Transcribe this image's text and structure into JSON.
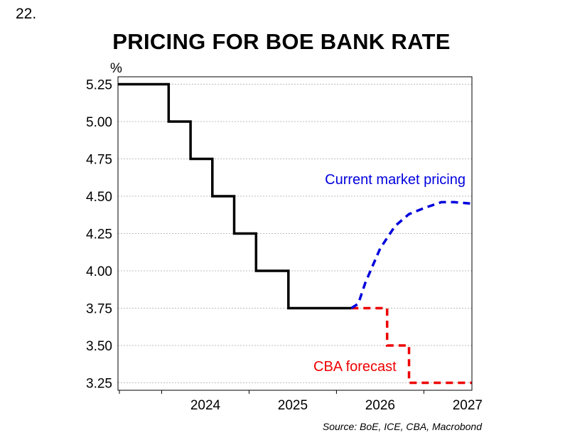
{
  "header": {
    "number": "22.",
    "title": "PRICING FOR BOE BANK RATE",
    "unit": "%",
    "source": "Source: BoE, ICE, CBA, Macrobond"
  },
  "colors": {
    "history": "#000000",
    "market": "#0000dd",
    "cba": "#ee0000",
    "grid": "#bbbbbb"
  },
  "chart_data": {
    "type": "line",
    "title": "PRICING FOR BOE BANK RATE",
    "ylabel": "%",
    "ylim": [
      3.2,
      5.3
    ],
    "yticks": [
      5.25,
      5.0,
      4.75,
      4.5,
      4.25,
      4.0,
      3.75,
      3.5,
      3.25
    ],
    "ytick_labels": [
      "5.25",
      "5.00",
      "4.75",
      "4.50",
      "4.25",
      "4.00",
      "3.75",
      "3.50",
      "3.25"
    ],
    "xlim": [
      2023.5,
      2027.55
    ],
    "xtick_labels": [
      "2024",
      "2025",
      "2026",
      "2027"
    ],
    "x_boundaries": [
      2024,
      2025,
      2026,
      2027
    ],
    "grid": true,
    "series": [
      {
        "key": "history",
        "style": "solid",
        "points": [
          [
            2023.5,
            5.25
          ],
          [
            2024.08,
            5.25
          ],
          [
            2024.08,
            5.0
          ],
          [
            2024.33,
            5.0
          ],
          [
            2024.33,
            4.75
          ],
          [
            2024.58,
            4.75
          ],
          [
            2024.58,
            4.5
          ],
          [
            2024.83,
            4.5
          ],
          [
            2024.83,
            4.25
          ],
          [
            2025.08,
            4.25
          ],
          [
            2025.08,
            4.0
          ],
          [
            2025.45,
            4.0
          ],
          [
            2025.45,
            3.75
          ],
          [
            2026.17,
            3.75
          ]
        ]
      },
      {
        "key": "market",
        "name": "Current market pricing",
        "style": "dashed",
        "points": [
          [
            2026.17,
            3.75
          ],
          [
            2026.25,
            3.78
          ],
          [
            2026.33,
            3.92
          ],
          [
            2026.5,
            4.15
          ],
          [
            2026.67,
            4.3
          ],
          [
            2026.83,
            4.38
          ],
          [
            2027.0,
            4.42
          ],
          [
            2027.2,
            4.46
          ],
          [
            2027.35,
            4.46
          ],
          [
            2027.55,
            4.45
          ]
        ]
      },
      {
        "key": "cba",
        "name": "CBA forecast",
        "style": "dashed",
        "points": [
          [
            2026.17,
            3.75
          ],
          [
            2026.58,
            3.75
          ],
          [
            2026.58,
            3.5
          ],
          [
            2026.83,
            3.5
          ],
          [
            2026.83,
            3.25
          ],
          [
            2027.55,
            3.25
          ]
        ]
      }
    ],
    "annotations": [
      {
        "text": "Current market pricing",
        "series": "market"
      },
      {
        "text": "CBA forecast",
        "series": "cba"
      }
    ]
  }
}
